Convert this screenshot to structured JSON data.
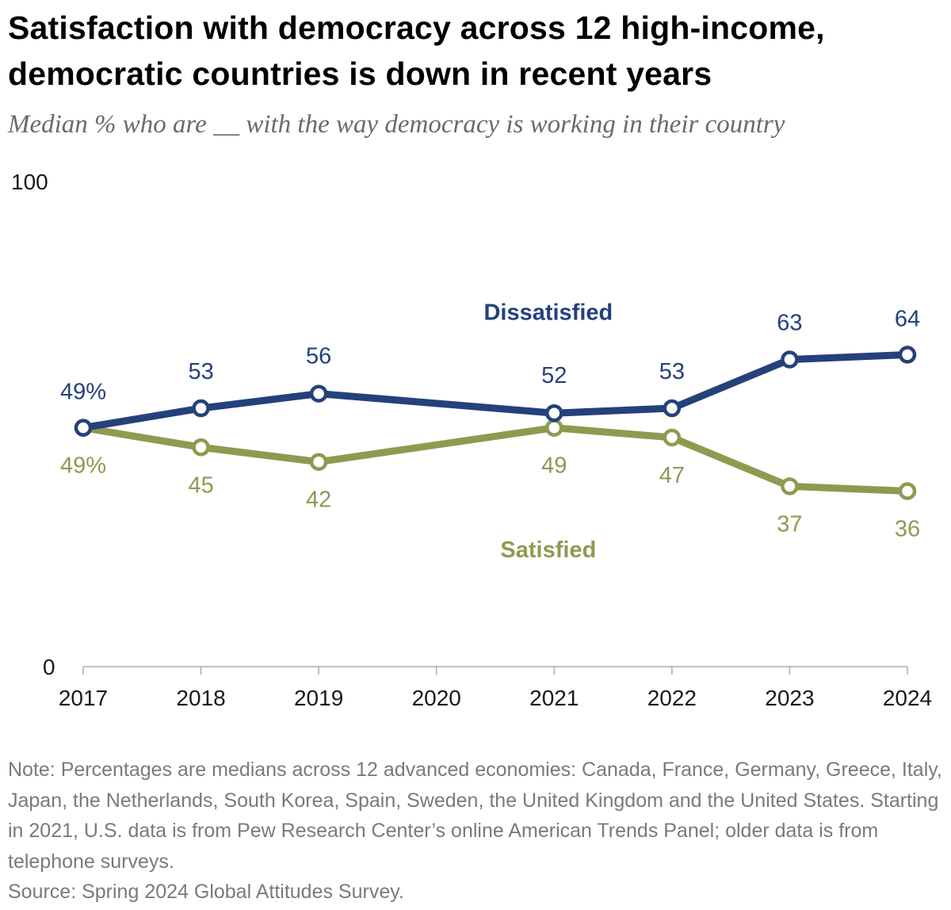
{
  "title": "Satisfaction with democracy across 12 high-income, democratic countries is down in recent years",
  "subtitle": "Median % who are __ with the way democracy is working in their country",
  "note": "Note: Percentages are medians across 12 advanced economies: Canada, France, Germany, Greece, Italy, Japan, the Netherlands, South Korea, Spain, Sweden, the United Kingdom and the United States. Starting in 2021, U.S. data is from Pew Research Center’s online American Trends Panel; older data is from telephone surveys.",
  "source": "Source: Spring 2024 Global Attitudes Survey.",
  "chart_data": {
    "type": "line",
    "x_ticks": [
      "2017",
      "2018",
      "2019",
      "2020",
      "2021",
      "2022",
      "2023",
      "2024"
    ],
    "y_ticks": [
      "0",
      "100"
    ],
    "ylim": [
      0,
      100
    ],
    "xlim": [
      2017,
      2024
    ],
    "grid": false,
    "series": [
      {
        "name": "Dissatisfied",
        "color": "#24417a",
        "x": [
          2017,
          2018,
          2019,
          2021,
          2022,
          2023,
          2024
        ],
        "values": [
          49,
          53,
          56,
          52,
          53,
          63,
          64
        ],
        "labels": [
          "49%",
          "53",
          "56",
          "52",
          "53",
          "63",
          "64"
        ]
      },
      {
        "name": "Satisfied",
        "color": "#8d9b50",
        "x": [
          2017,
          2018,
          2019,
          2021,
          2022,
          2023,
          2024
        ],
        "values": [
          49,
          45,
          42,
          49,
          47,
          37,
          36
        ],
        "labels": [
          "49%",
          "45",
          "42",
          "49",
          "47",
          "37",
          "36"
        ]
      }
    ]
  }
}
